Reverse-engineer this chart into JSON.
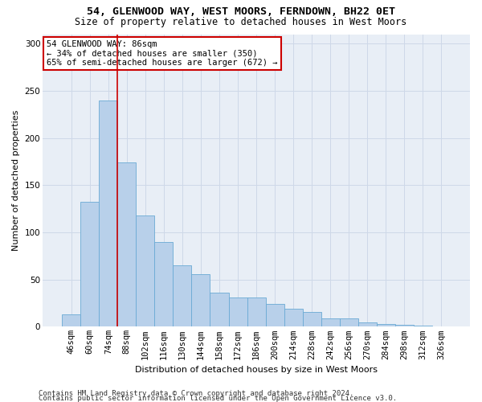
{
  "title1": "54, GLENWOOD WAY, WEST MOORS, FERNDOWN, BH22 0ET",
  "title2": "Size of property relative to detached houses in West Moors",
  "xlabel": "Distribution of detached houses by size in West Moors",
  "ylabel": "Number of detached properties",
  "footnote1": "Contains HM Land Registry data © Crown copyright and database right 2024.",
  "footnote2": "Contains public sector information licensed under the Open Government Licence v3.0.",
  "bar_labels": [
    "46sqm",
    "60sqm",
    "74sqm",
    "88sqm",
    "102sqm",
    "116sqm",
    "130sqm",
    "144sqm",
    "158sqm",
    "172sqm",
    "186sqm",
    "200sqm",
    "214sqm",
    "228sqm",
    "242sqm",
    "256sqm",
    "270sqm",
    "284sqm",
    "298sqm",
    "312sqm",
    "326sqm"
  ],
  "bar_values": [
    13,
    132,
    240,
    174,
    118,
    90,
    65,
    56,
    36,
    31,
    31,
    24,
    19,
    16,
    9,
    9,
    5,
    3,
    2,
    1,
    0
  ],
  "bar_color": "#b8d0ea",
  "bar_edge_color": "#6aaad4",
  "vline_index": 3,
  "marker_label": "54 GLENWOOD WAY: 86sqm",
  "annotation_line1": "← 34% of detached houses are smaller (350)",
  "annotation_line2": "65% of semi-detached houses are larger (672) →",
  "annotation_box_color": "#ffffff",
  "annotation_box_edge": "#cc0000",
  "vline_color": "#cc0000",
  "grid_color": "#ced8e8",
  "background_color": "#e8eef6",
  "ylim": [
    0,
    310
  ],
  "yticks": [
    0,
    50,
    100,
    150,
    200,
    250,
    300
  ],
  "title_fontsize": 9.5,
  "subtitle_fontsize": 8.5,
  "xlabel_fontsize": 8,
  "ylabel_fontsize": 8,
  "tick_fontsize": 7.5,
  "annot_fontsize": 7.5,
  "footnote_fontsize": 6.5
}
